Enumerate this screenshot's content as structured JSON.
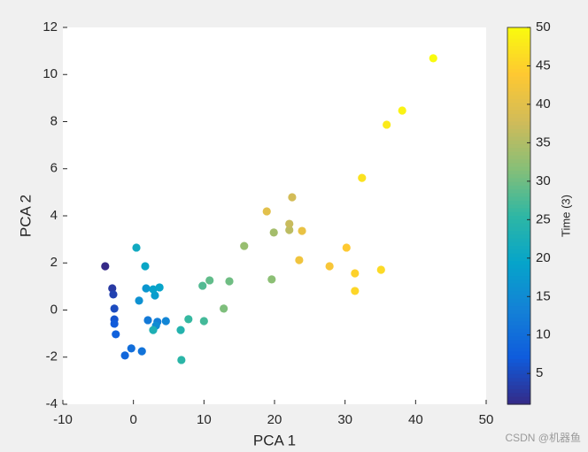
{
  "chart_data": {
    "type": "scatter",
    "x_label": "PCA 1",
    "y_label": "PCA 2",
    "colorbar_label": "Time (3)",
    "xlim": [
      -10,
      50
    ],
    "xticks": [
      -10,
      0,
      10,
      20,
      30,
      40,
      50
    ],
    "ylim": [
      -4,
      12
    ],
    "yticks": [
      -4,
      -2,
      0,
      2,
      4,
      6,
      8,
      10,
      12
    ],
    "clim": [
      1,
      50
    ],
    "cticks": [
      5,
      10,
      15,
      20,
      25,
      30,
      35,
      40,
      45,
      50
    ],
    "colormap": [
      "#352a87",
      "#0f5cdd",
      "#1481d6",
      "#06a4ca",
      "#2eb7a4",
      "#87bf77",
      "#d1bb59",
      "#fec832",
      "#f9fb0e"
    ],
    "series": [
      {
        "x": [
          -4.0,
          -3.0,
          -2.85,
          -2.7,
          -2.7,
          -2.7,
          -2.5,
          -1.2,
          -0.3,
          1.2,
          2.05,
          3.4,
          4.6,
          3.2,
          0.8,
          1.8,
          3.05,
          2.8,
          3.7,
          1.67,
          0.42,
          6.7,
          6.8,
          2.8,
          7.8,
          10.0,
          9.8,
          10.8,
          13.6,
          12.8,
          19.6,
          15.7,
          19.9,
          22.1,
          22.1,
          22.5,
          18.9,
          23.9,
          23.5,
          27.8,
          30.2,
          31.4,
          31.4,
          35.1,
          32.4,
          35.9,
          38.1,
          42.5
        ],
        "y": [
          1.86,
          0.92,
          0.66,
          0.06,
          -0.4,
          -0.58,
          -1.03,
          -1.93,
          -1.63,
          -1.75,
          -0.43,
          -0.5,
          -0.47,
          -0.66,
          0.4,
          0.92,
          0.62,
          0.88,
          0.96,
          1.86,
          2.65,
          -0.85,
          -2.12,
          -0.85,
          -0.39,
          -0.47,
          1.03,
          1.26,
          1.22,
          0.06,
          1.3,
          2.72,
          3.29,
          3.4,
          3.66,
          4.79,
          4.19,
          3.36,
          2.12,
          1.86,
          2.65,
          1.56,
          0.81,
          1.71,
          5.61,
          7.87,
          8.47,
          10.69
        ],
        "c": [
          1,
          3,
          4,
          5,
          6,
          7,
          8,
          9,
          10,
          11,
          12,
          13,
          14,
          15,
          16,
          17,
          18,
          19,
          19.5,
          20,
          21,
          24,
          25,
          23,
          26,
          27,
          28,
          29,
          30,
          31,
          32,
          33,
          34,
          36,
          37,
          38,
          40,
          41,
          42,
          43,
          44,
          45,
          45.5,
          46,
          47,
          48,
          49,
          50
        ]
      }
    ],
    "watermark": "CSDN @机器鱼"
  }
}
